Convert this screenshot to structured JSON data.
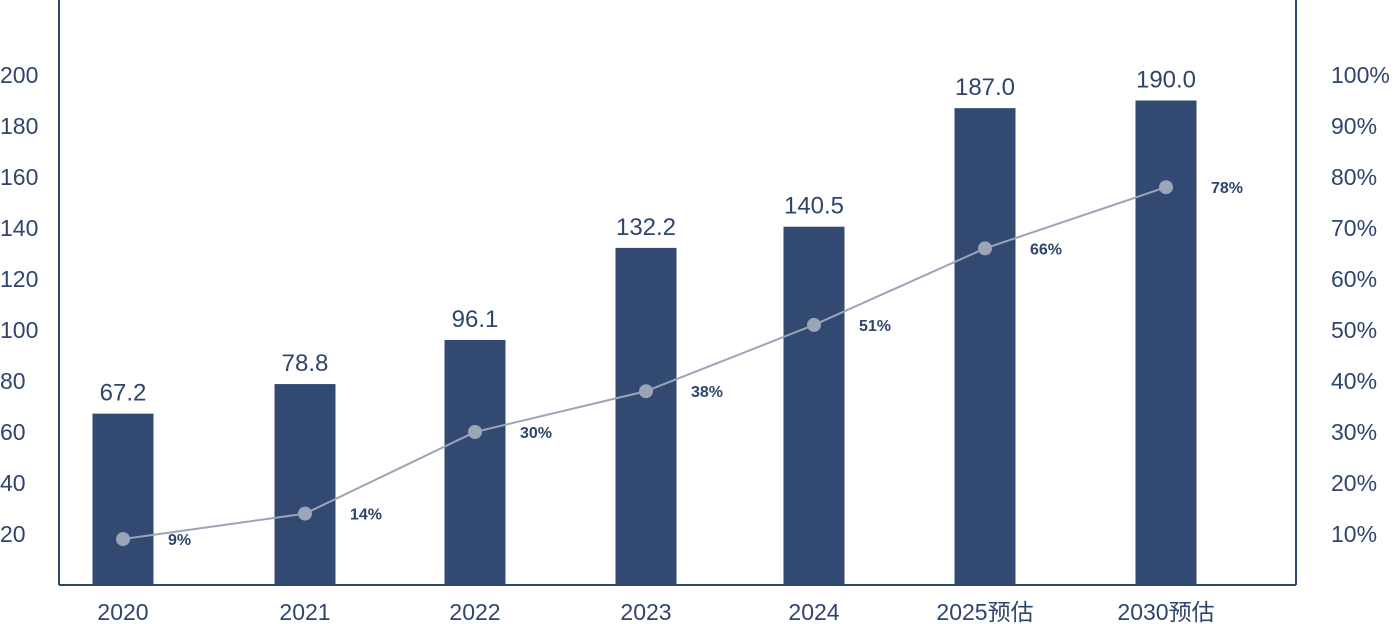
{
  "chart_data": {
    "type": "bar",
    "categories": [
      "2020",
      "2021",
      "2022",
      "2023",
      "2024",
      "2025预估",
      "2030预估"
    ],
    "series": [
      {
        "type": "bar",
        "axis": "left",
        "values": [
          67.2,
          78.8,
          96.1,
          132.2,
          140.5,
          187.0,
          190.0
        ],
        "value_labels": [
          "67.2",
          "78.8",
          "96.1",
          "132.2",
          "140.5",
          "187.0",
          "190.0"
        ],
        "color": "#324a71"
      },
      {
        "type": "line",
        "axis": "right",
        "values": [
          9,
          14,
          30,
          38,
          51,
          66,
          78
        ],
        "value_labels": [
          "9%",
          "14%",
          "30%",
          "38%",
          "51%",
          "66%",
          "78%"
        ],
        "color": "#9aa5b7"
      }
    ],
    "y_left": {
      "ylim": [
        0,
        200
      ],
      "ticks": [
        "20",
        "40",
        "60",
        "80",
        "100",
        "120",
        "140",
        "160",
        "180",
        "200"
      ],
      "tick_values": [
        20,
        40,
        60,
        80,
        100,
        120,
        140,
        160,
        180,
        200
      ]
    },
    "y_right": {
      "ylim": [
        0,
        100
      ],
      "ticks": [
        "10%",
        "20%",
        "30%",
        "40%",
        "50%",
        "60%",
        "70%",
        "80%",
        "90%",
        "100%"
      ],
      "tick_values": [
        10,
        20,
        30,
        40,
        50,
        60,
        70,
        80,
        90,
        100
      ]
    },
    "title": "",
    "xlabel": "",
    "ylabel": "",
    "grid": false,
    "legend": "none",
    "axis_color": "#30456c"
  }
}
